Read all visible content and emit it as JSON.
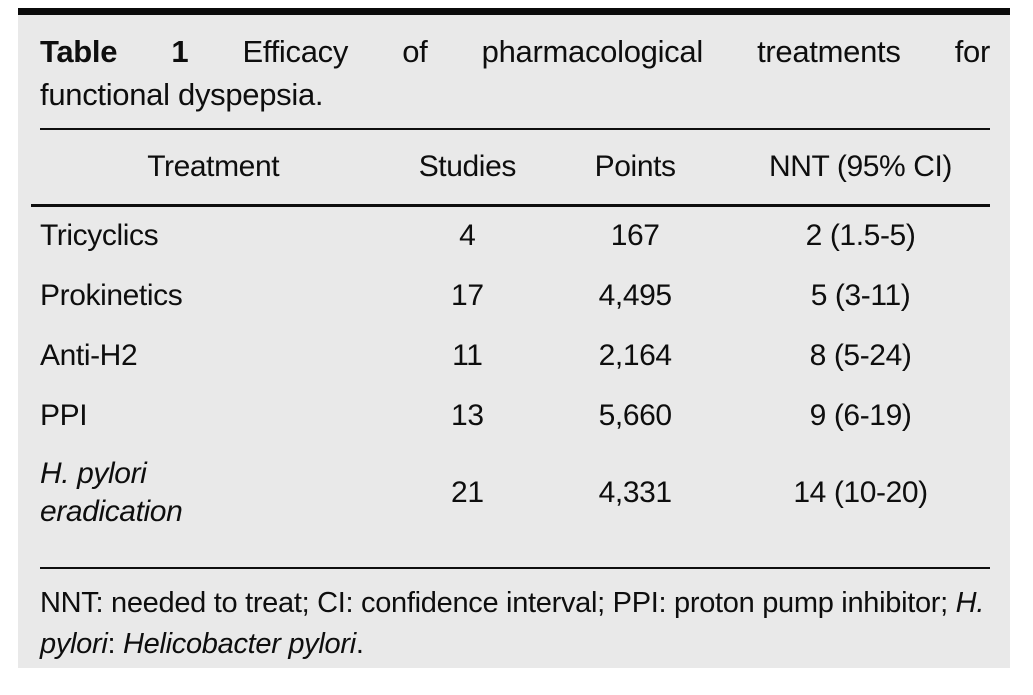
{
  "table": {
    "title": {
      "label": "Table 1",
      "line1_rest": " Efficacy of pharmacological treatments for",
      "line2": "functional dyspepsia."
    },
    "columns": [
      "Treatment",
      "Studies",
      "Points",
      "NNT (95% CI)"
    ],
    "rows": [
      {
        "treatment": "Tricyclics",
        "studies": "4",
        "points": "167",
        "nnt": "2 (1.5-5)"
      },
      {
        "treatment": "Prokinetics",
        "studies": "17",
        "points": "4,495",
        "nnt": "5 (3-11)"
      },
      {
        "treatment": "Anti-H2",
        "studies": "11",
        "points": "2,164",
        "nnt": "8 (5-24)"
      },
      {
        "treatment": "PPI",
        "studies": "13",
        "points": "5,660",
        "nnt": "9 (6-19)"
      },
      {
        "treatment": "H. pylori eradication",
        "studies": "21",
        "points": "4,331",
        "nnt": "14 (10-20)"
      }
    ],
    "footnote": {
      "part1": "NNT: needed to treat; CI: confidence interval; PPI: proton pump inhibitor; ",
      "part2_italic": "H. pylori",
      "part3": ": ",
      "part4_italic": "Helicobacter pylori",
      "part5": "."
    }
  },
  "colors": {
    "panel_bg": "#e9e9e9",
    "text": "#0e0e0e",
    "rule": "#0e0e0e",
    "top_bar": "#0b0b0b",
    "page_bg": "#ffffff"
  }
}
